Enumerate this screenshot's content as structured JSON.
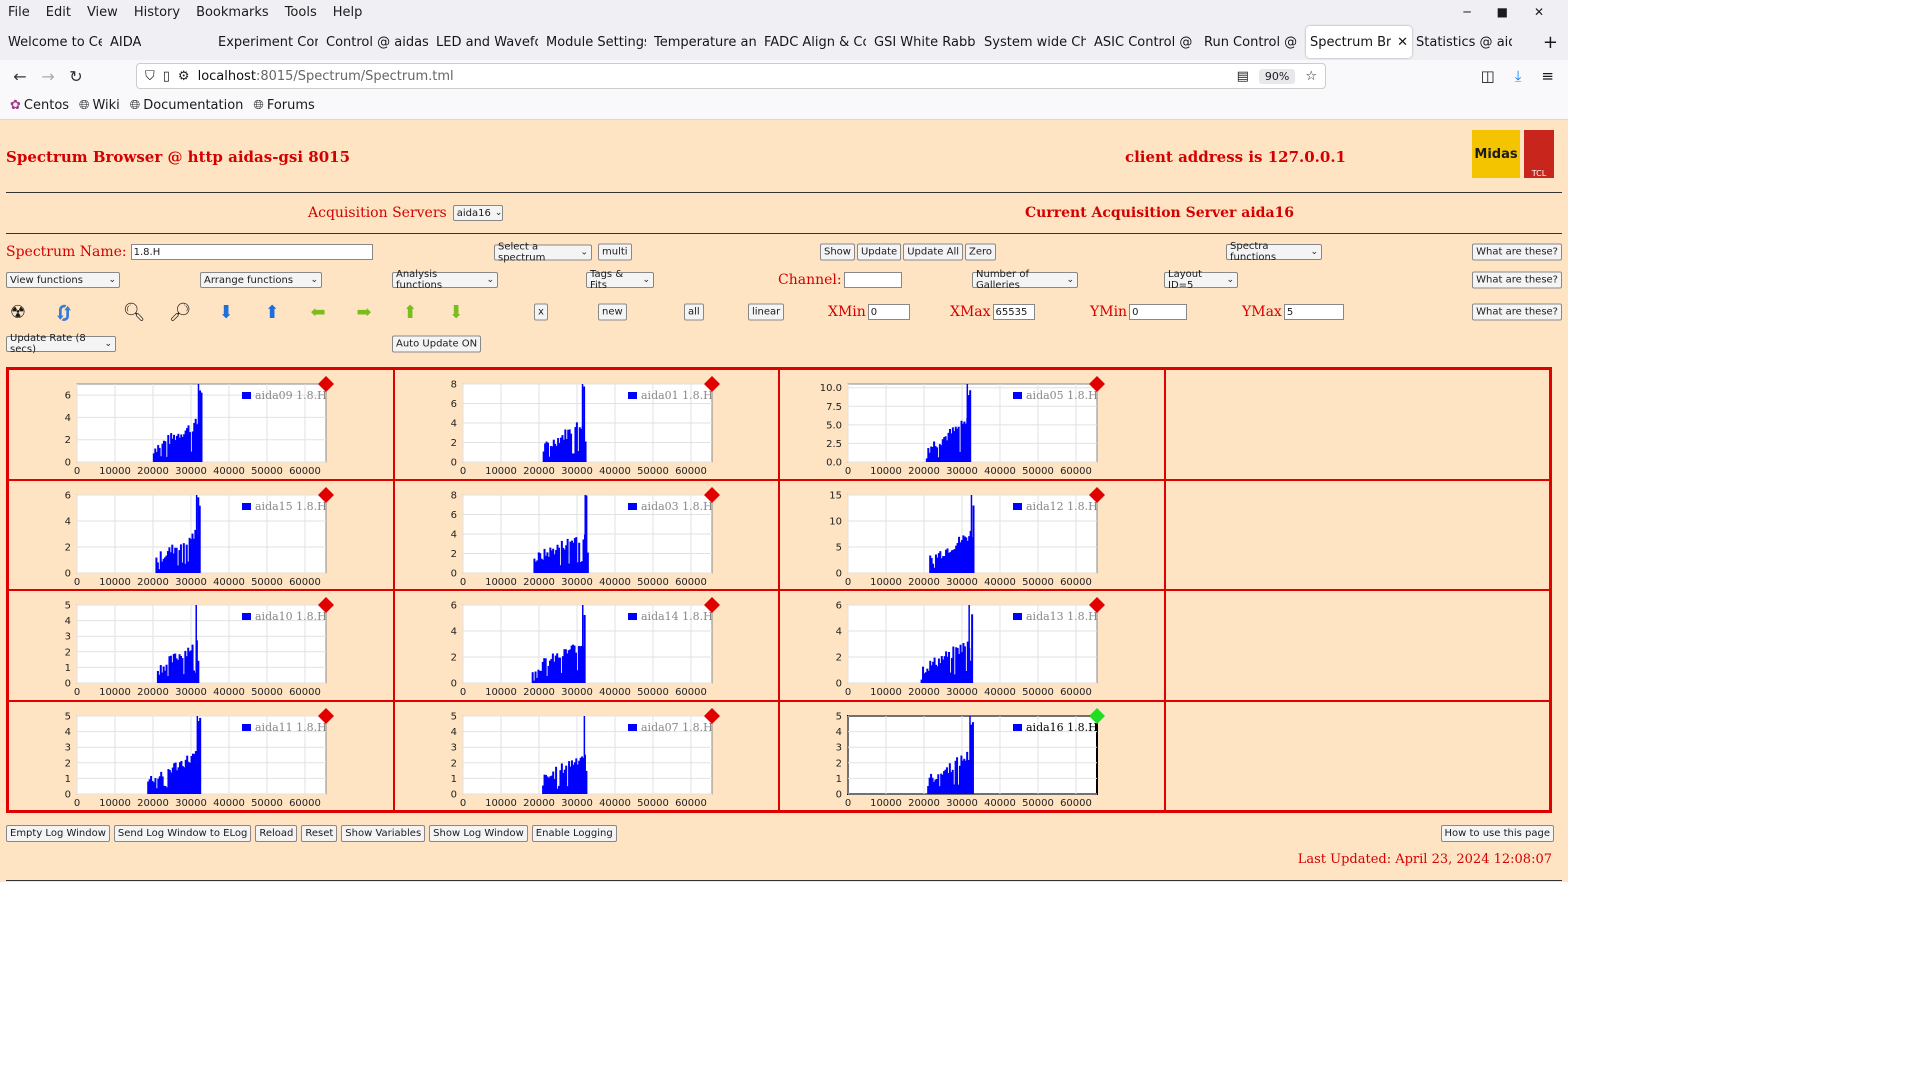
{
  "browser": {
    "menu": [
      "File",
      "Edit",
      "View",
      "History",
      "Bookmarks",
      "Tools",
      "Help"
    ],
    "tabs": [
      {
        "label": "Welcome to Cent",
        "active": false
      },
      {
        "label": "AIDA",
        "active": false
      },
      {
        "label": "Experiment Contr",
        "active": false
      },
      {
        "label": "Control @ aidas-",
        "active": false
      },
      {
        "label": "LED and Wavefor",
        "active": false
      },
      {
        "label": "Module Settings",
        "active": false
      },
      {
        "label": "Temperature and",
        "active": false
      },
      {
        "label": "FADC Align & Co",
        "active": false
      },
      {
        "label": "GSI White Rabbit",
        "active": false
      },
      {
        "label": "System wide Che",
        "active": false
      },
      {
        "label": "ASIC Control @ a",
        "active": false
      },
      {
        "label": "Run Control @ ai",
        "active": false
      },
      {
        "label": "Spectrum Brow",
        "active": true
      },
      {
        "label": "Statistics @ aidas",
        "active": false
      }
    ],
    "url_host": "localhost",
    "url_rest": ":8015/Spectrum/Spectrum.tml",
    "zoom": "90%",
    "bookmarks": [
      "Centos",
      "Wiki",
      "Documentation",
      "Forums"
    ]
  },
  "header": {
    "title": "Spectrum Browser @ http aidas-gsi 8015",
    "client": "client address is 127.0.0.1",
    "logo_midas": "Midas",
    "logo_tcl": "TCL"
  },
  "acquisition": {
    "label": "Acquisition Servers",
    "server_value": "aida16",
    "current": "Current Acquisition Server aida16"
  },
  "controls": {
    "spectrum_name_label": "Spectrum Name:",
    "spectrum_name_value": "1.8.H",
    "select_spectrum": "Select a spectrum",
    "multi": "multi",
    "show": "Show",
    "update": "Update",
    "update_all": "Update All",
    "zero": "Zero",
    "spectra_functions": "Spectra functions",
    "what": "What are these?",
    "view_functions": "View functions",
    "arrange_functions": "Arrange functions",
    "analysis_functions": "Analysis functions",
    "tags_fits": "Tags & Fits",
    "channel_label": "Channel:",
    "channel_value": "",
    "galleries": "Number of Galleries",
    "layout": "Layout ID=5",
    "x": "x",
    "new": "new",
    "all": "all",
    "linear": "linear",
    "xmin_label": "XMin",
    "xmin": "0",
    "xmax_label": "XMax",
    "xmax": "65535",
    "ymin_label": "YMin",
    "ymin": "0",
    "ymax_label": "YMax",
    "ymax": "5",
    "update_rate": "Update Rate (8 secs)",
    "auto_update": "Auto Update ON"
  },
  "chart_data": [
    {
      "type": "bar",
      "legend": "aida09 1.8.H",
      "ylim": [
        0,
        7
      ],
      "yticks": [
        "0",
        "2",
        "4",
        "6"
      ],
      "xticks": [
        "0",
        "10000",
        "20000",
        "30000",
        "40000",
        "50000",
        "60000"
      ],
      "status": "red",
      "active": false
    },
    {
      "type": "bar",
      "legend": "aida01 1.8.H",
      "ylim": [
        0,
        8
      ],
      "yticks": [
        "0",
        "2",
        "4",
        "6",
        "8"
      ],
      "xticks": [
        "0",
        "10000",
        "20000",
        "30000",
        "40000",
        "50000",
        "60000"
      ],
      "status": "red",
      "active": false
    },
    {
      "type": "bar",
      "legend": "aida05 1.8.H",
      "ylim": [
        0,
        10.5
      ],
      "yticks": [
        "0.0",
        "2.5",
        "5.0",
        "7.5",
        "10.0"
      ],
      "xticks": [
        "0",
        "10000",
        "20000",
        "30000",
        "40000",
        "50000",
        "60000"
      ],
      "status": "red",
      "active": false
    },
    {
      "type": "bar",
      "legend": "aida15 1.8.H",
      "ylim": [
        0,
        6
      ],
      "yticks": [
        "0",
        "2",
        "4",
        "6"
      ],
      "xticks": [
        "0",
        "10000",
        "20000",
        "30000",
        "40000",
        "50000",
        "60000"
      ],
      "status": "red",
      "active": false
    },
    {
      "type": "bar",
      "legend": "aida03 1.8.H",
      "ylim": [
        0,
        8
      ],
      "yticks": [
        "0",
        "2",
        "4",
        "6",
        "8"
      ],
      "xticks": [
        "0",
        "10000",
        "20000",
        "30000",
        "40000",
        "50000",
        "60000"
      ],
      "status": "red",
      "active": false
    },
    {
      "type": "bar",
      "legend": "aida12 1.8.H",
      "ylim": [
        0,
        15
      ],
      "yticks": [
        "0",
        "5",
        "10",
        "15"
      ],
      "xticks": [
        "0",
        "10000",
        "20000",
        "30000",
        "40000",
        "50000",
        "60000"
      ],
      "status": "red",
      "active": false
    },
    {
      "type": "bar",
      "legend": "aida10 1.8.H",
      "ylim": [
        0,
        5
      ],
      "yticks": [
        "0",
        "1",
        "2",
        "3",
        "4",
        "5"
      ],
      "xticks": [
        "0",
        "10000",
        "20000",
        "30000",
        "40000",
        "50000",
        "60000"
      ],
      "status": "red",
      "active": false
    },
    {
      "type": "bar",
      "legend": "aida14 1.8.H",
      "ylim": [
        0,
        6
      ],
      "yticks": [
        "0",
        "2",
        "4",
        "6"
      ],
      "xticks": [
        "0",
        "10000",
        "20000",
        "30000",
        "40000",
        "50000",
        "60000"
      ],
      "status": "red",
      "active": false
    },
    {
      "type": "bar",
      "legend": "aida13 1.8.H",
      "ylim": [
        0,
        6
      ],
      "yticks": [
        "0",
        "2",
        "4",
        "6"
      ],
      "xticks": [
        "0",
        "10000",
        "20000",
        "30000",
        "40000",
        "50000",
        "60000"
      ],
      "status": "red",
      "active": false
    },
    {
      "type": "bar",
      "legend": "aida11 1.8.H",
      "ylim": [
        0,
        5
      ],
      "yticks": [
        "0",
        "1",
        "2",
        "3",
        "4",
        "5"
      ],
      "xticks": [
        "0",
        "10000",
        "20000",
        "30000",
        "40000",
        "50000",
        "60000"
      ],
      "status": "red",
      "active": false
    },
    {
      "type": "bar",
      "legend": "aida07 1.8.H",
      "ylim": [
        0,
        5
      ],
      "yticks": [
        "0",
        "1",
        "2",
        "3",
        "4",
        "5"
      ],
      "xticks": [
        "0",
        "10000",
        "20000",
        "30000",
        "40000",
        "50000",
        "60000"
      ],
      "status": "red",
      "active": false
    },
    {
      "type": "bar",
      "legend": "aida16 1.8.H",
      "ylim": [
        0,
        5
      ],
      "yticks": [
        "0",
        "1",
        "2",
        "3",
        "4",
        "5"
      ],
      "xticks": [
        "0",
        "10000",
        "20000",
        "30000",
        "40000",
        "50000",
        "60000"
      ],
      "status": "green",
      "active": true
    }
  ],
  "colors": {
    "red": "#e00000",
    "green": "#22dd22",
    "series": "#0000ff",
    "page_bg": "#ffe4c4"
  },
  "footer": {
    "buttons": [
      "Empty Log Window",
      "Send Log Window to ELog",
      "Reload",
      "Reset",
      "Show Variables",
      "Show Log Window",
      "Enable Logging"
    ],
    "howto": "How to use this page",
    "updated": "Last Updated: April 23, 2024 12:08:07"
  }
}
